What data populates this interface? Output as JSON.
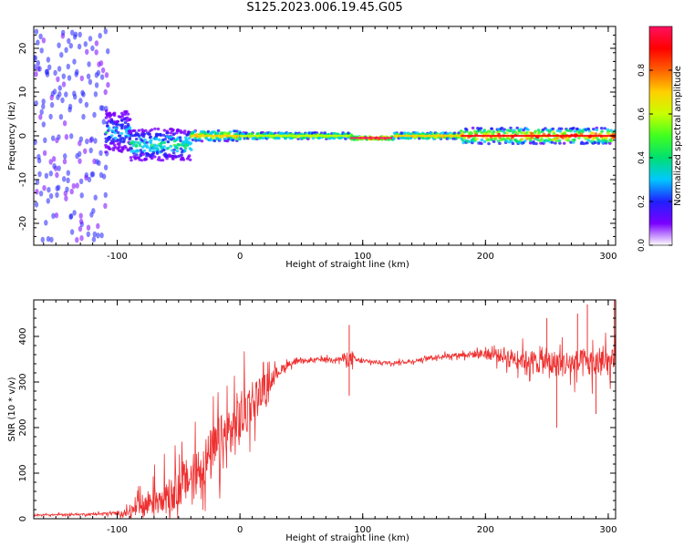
{
  "title": "S125.2023.006.19.45.G05",
  "colors": {
    "snr_line": "#ee3030",
    "axis": "#000000",
    "colormap": [
      "#ffffff",
      "#7a00ff",
      "#2020ff",
      "#00c8ff",
      "#00e070",
      "#40ff20",
      "#c8ff00",
      "#ffd000",
      "#ff6000",
      "#ff0000",
      "#ff1060"
    ]
  },
  "chart_data": [
    {
      "type": "heatmap",
      "name": "spectrogram",
      "xlabel": "Height of straight line (km)",
      "ylabel": "Frequency (Hz)",
      "xlim": [
        -168,
        306
      ],
      "ylim": [
        -25,
        25
      ],
      "xticks": [
        -100,
        0,
        100,
        200,
        300
      ],
      "yticks": [
        -20,
        -10,
        0,
        10,
        20
      ],
      "grid": false,
      "colorbar": {
        "label": "Normalized spectral amplitude",
        "range": [
          0,
          1
        ],
        "ticks": [
          "0.0",
          "0.2",
          "0.4",
          "0.6",
          "0.8"
        ]
      },
      "segments": [
        {
          "x_start": -168,
          "x_end": -110,
          "freq_center": 0,
          "freq_spread": 24,
          "amplitude": 0.18
        },
        {
          "x_start": -110,
          "x_end": -90,
          "freq_center": 1,
          "freq_spread": 4,
          "amplitude": 0.3
        },
        {
          "x_start": -90,
          "x_end": -40,
          "freq_center": -2,
          "freq_spread": 3,
          "amplitude": 0.4
        },
        {
          "x_start": -40,
          "x_end": 0,
          "freq_center": 0,
          "freq_spread": 1,
          "amplitude": 0.7
        },
        {
          "x_start": 0,
          "x_end": 90,
          "freq_center": 0,
          "freq_spread": 0.6,
          "amplitude": 0.6
        },
        {
          "x_start": 90,
          "x_end": 125,
          "freq_center": -0.5,
          "freq_spread": 0.3,
          "amplitude": 0.95
        },
        {
          "x_start": 125,
          "x_end": 180,
          "freq_center": 0,
          "freq_spread": 0.6,
          "amplitude": 0.7
        },
        {
          "x_start": 180,
          "x_end": 306,
          "freq_center": 0,
          "freq_spread": 1.5,
          "amplitude": 0.85
        }
      ]
    },
    {
      "type": "line",
      "name": "snr",
      "xlabel": "Height of straight line (km)",
      "ylabel": "SNR (10 * v/v)",
      "xlim": [
        -168,
        306
      ],
      "ylim": [
        0,
        480
      ],
      "xticks": [
        -100,
        0,
        100,
        200,
        300
      ],
      "yticks": [
        0,
        100,
        200,
        300,
        400
      ],
      "grid": false,
      "envelope": {
        "x": [
          -168,
          -120,
          -100,
          -90,
          -80,
          -70,
          -60,
          -50,
          -40,
          -30,
          -20,
          -10,
          0,
          10,
          20,
          30,
          40,
          50,
          60,
          70,
          80,
          88,
          95,
          100,
          120,
          140,
          160,
          180,
          200,
          220,
          240,
          260,
          280,
          300,
          306
        ],
        "mean": [
          8,
          10,
          12,
          15,
          25,
          45,
          60,
          70,
          90,
          120,
          150,
          180,
          220,
          260,
          290,
          320,
          340,
          345,
          348,
          350,
          350,
          352,
          348,
          345,
          342,
          345,
          355,
          360,
          362,
          355,
          345,
          340,
          340,
          340,
          340
        ],
        "amp": [
          4,
          5,
          10,
          20,
          60,
          80,
          90,
          100,
          110,
          120,
          140,
          150,
          150,
          110,
          60,
          30,
          15,
          10,
          10,
          10,
          10,
          40,
          12,
          10,
          8,
          8,
          10,
          12,
          25,
          40,
          55,
          65,
          70,
          70,
          70
        ]
      },
      "spikes": [
        {
          "x": 89,
          "y": 425
        },
        {
          "x": 89,
          "y": 270
        },
        {
          "x": 305,
          "y": 480
        },
        {
          "x": 250,
          "y": 440
        },
        {
          "x": 275,
          "y": 450
        },
        {
          "x": 283,
          "y": 470
        },
        {
          "x": 258,
          "y": 200
        },
        {
          "x": 290,
          "y": 230
        }
      ]
    }
  ]
}
